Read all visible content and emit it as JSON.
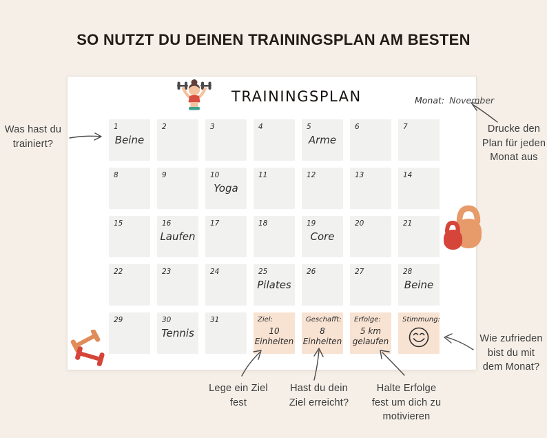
{
  "page": {
    "heading": "SO NUTZT DU DEINEN TRAININGSPLAN AM BESTEN"
  },
  "calendar": {
    "title": "TRAININGSPLAN",
    "month_label": "Monat:",
    "month_value": "November",
    "num_days": 31,
    "day_entries": {
      "1": "Beine",
      "5": "Arme",
      "10": "Yoga",
      "16": "Laufen",
      "19": "Core",
      "25": "Pilates",
      "28": "Beine",
      "30": "Tennis"
    },
    "summary": [
      {
        "key": "ziel",
        "label": "Ziel:",
        "value": "10 Einheiten"
      },
      {
        "key": "geschafft",
        "label": "Geschafft:",
        "value": "8 Einheiten"
      },
      {
        "key": "erfolge",
        "label": "Erfolge:",
        "value": "5 km gelaufen"
      },
      {
        "key": "stimmung",
        "label": "Stimmung:",
        "value": "",
        "icon": "smiley-icon"
      }
    ]
  },
  "annotations": {
    "was_trainiert": "Was hast du trainiert?",
    "drucke": "Drucke den Plan für jeden Monat aus",
    "lege": "Lege ein Ziel fest",
    "hast": "Hast du dein Ziel erreicht?",
    "halte": "Halte Erfolge fest um dich zu motivieren",
    "wie": "Wie zufrieden bist du mit dem Monat?"
  },
  "icons": {
    "header": "woman-lifting-dumbbells-icon",
    "right_decor": "kettlebells-icon",
    "bottom_left_decor": "dumbbells-icon",
    "mood": "smiley-icon"
  },
  "colors": {
    "background": "#f5efe8",
    "panel": "#ffffff",
    "day_cell": "#f1f1ef",
    "summary_cell": "#f8e3d3",
    "accent_orange": "#e79b6a",
    "accent_red": "#d5453a",
    "heading_text": "#221c17",
    "annotation_text": "#3b3b3b",
    "arrow": "#4a4a4a"
  }
}
